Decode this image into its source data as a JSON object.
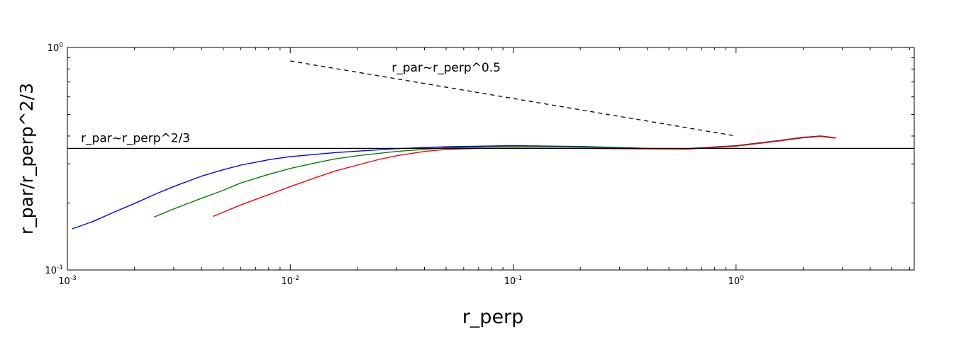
{
  "chart_data": {
    "type": "line",
    "title": "",
    "xlabel": "r_perp",
    "ylabel": "r_par/r_perp^2/3",
    "x_scale": "log",
    "y_scale": "log",
    "xlim": [
      0.001,
      6.3
    ],
    "ylim": [
      0.1,
      1.0
    ],
    "grid": false,
    "legend": "none",
    "x_ticks": [
      {
        "value": 0.001,
        "base": "10",
        "exp": "-3"
      },
      {
        "value": 0.01,
        "base": "10",
        "exp": "-2"
      },
      {
        "value": 0.1,
        "base": "10",
        "exp": "-1"
      },
      {
        "value": 1,
        "base": "10",
        "exp": "0"
      }
    ],
    "y_ticks": [
      {
        "value": 0.1,
        "base": "10",
        "exp": "-1"
      },
      {
        "value": 1,
        "base": "10",
        "exp": "0"
      }
    ],
    "series": [
      {
        "color": "#0000ff",
        "x": [
          0.00105,
          0.0013,
          0.0016,
          0.002,
          0.0025,
          0.003,
          0.004,
          0.005,
          0.006,
          0.008,
          0.01,
          0.013,
          0.016,
          0.02,
          0.03,
          0.05,
          0.1,
          0.2,
          0.4,
          0.6,
          1.0,
          1.5,
          2.0,
          2.4,
          2.8
        ],
        "y": [
          0.153,
          0.165,
          0.181,
          0.199,
          0.22,
          0.237,
          0.264,
          0.282,
          0.296,
          0.313,
          0.323,
          0.331,
          0.337,
          0.342,
          0.351,
          0.358,
          0.362,
          0.359,
          0.352,
          0.351,
          0.362,
          0.38,
          0.395,
          0.4,
          0.393
        ]
      },
      {
        "color": "#008000",
        "x": [
          0.00245,
          0.003,
          0.004,
          0.005,
          0.006,
          0.008,
          0.01,
          0.013,
          0.016,
          0.02,
          0.03,
          0.05,
          0.1,
          0.2,
          0.4,
          0.6,
          1.0,
          1.5,
          2.0,
          2.4,
          2.8
        ],
        "y": [
          0.173,
          0.188,
          0.21,
          0.228,
          0.246,
          0.269,
          0.286,
          0.303,
          0.316,
          0.326,
          0.341,
          0.354,
          0.359,
          0.357,
          0.351,
          0.35,
          0.361,
          0.379,
          0.394,
          0.399,
          0.392
        ]
      },
      {
        "color": "#ff0000",
        "x": [
          0.0045,
          0.006,
          0.008,
          0.01,
          0.013,
          0.016,
          0.02,
          0.025,
          0.03,
          0.04,
          0.05,
          0.07,
          0.1,
          0.2,
          0.4,
          0.6,
          1.0,
          1.5,
          2.0,
          2.4,
          2.8
        ],
        "y": [
          0.174,
          0.196,
          0.218,
          0.237,
          0.26,
          0.279,
          0.296,
          0.314,
          0.326,
          0.341,
          0.348,
          0.352,
          0.353,
          0.352,
          0.35,
          0.349,
          0.36,
          0.378,
          0.393,
          0.398,
          0.391
        ]
      }
    ],
    "reference_lines": [
      {
        "label": "r_par~r_perp^2/3",
        "style": "solid",
        "color": "#000000",
        "x": [
          0.001,
          6.3
        ],
        "y": [
          0.352,
          0.352
        ]
      },
      {
        "label": "r_par~r_perp^0.5",
        "style": "dashed",
        "color": "#000000",
        "x": [
          0.01,
          1.0
        ],
        "y": [
          0.87,
          0.4
        ]
      }
    ]
  }
}
